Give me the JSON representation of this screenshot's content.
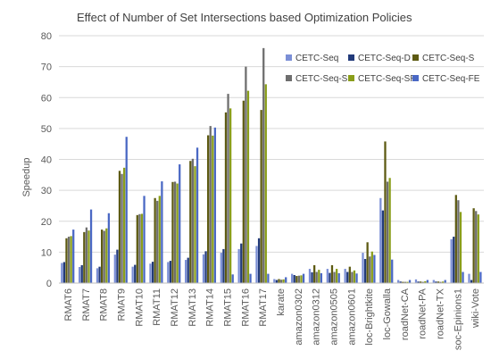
{
  "chart_data": {
    "type": "bar",
    "title": "Effect of Number of Set Intersections based Optimization Policies",
    "xlabel": "",
    "ylabel": "Speedup",
    "ylim": [
      0,
      80
    ],
    "yticks": [
      0,
      10,
      20,
      30,
      40,
      50,
      60,
      70,
      80
    ],
    "grid": true,
    "legend_position": "top-right",
    "categories": [
      "RMAT6",
      "RMAT7",
      "RMAT8",
      "RMAT9",
      "RMAT10",
      "RMAT11",
      "RMAT12",
      "RMAT13",
      "RMAT14",
      "RMAT15",
      "RMAT16",
      "RMAT17",
      "karate",
      "amazon0302",
      "amazon0312",
      "amazon0505",
      "amazon0601",
      "loc-Brightkite",
      "loc-Gowalla",
      "roadNet-CA",
      "roadNet-PA",
      "roadNet-TX",
      "soc-Epinions1",
      "wiki-Vote"
    ],
    "series": [
      {
        "name": "CETC-Seq",
        "color": "#7b8fd6",
        "values": [
          6.5,
          5.2,
          4.8,
          9.2,
          5.3,
          6.3,
          6.8,
          7.5,
          9.3,
          9.8,
          11.0,
          12.0,
          1.3,
          3.0,
          4.6,
          4.6,
          4.6,
          9.8,
          27.5,
          1.0,
          1.2,
          1.0,
          14.2,
          3.0
        ]
      },
      {
        "name": "CETC-Seq-D",
        "color": "#223a7a",
        "values": [
          6.8,
          5.8,
          5.3,
          10.8,
          5.9,
          6.9,
          7.2,
          8.2,
          10.3,
          11.0,
          12.8,
          14.5,
          1.0,
          2.6,
          3.5,
          3.3,
          3.6,
          7.8,
          23.5,
          0.5,
          0.5,
          0.5,
          15.0,
          1.0
        ]
      },
      {
        "name": "CETC-Seq-S",
        "color": "#5d5a12",
        "values": [
          14.5,
          16.5,
          17.3,
          36.3,
          22.0,
          27.5,
          32.7,
          39.5,
          47.8,
          55.2,
          59.0,
          56.0,
          1.3,
          2.3,
          5.8,
          5.8,
          5.3,
          13.2,
          45.8,
          0.4,
          0.5,
          0.5,
          28.5,
          24.2
        ]
      },
      {
        "name": "CETC-Seq-SD",
        "color": "#6e6e6e",
        "values": [
          15.0,
          18.0,
          16.9,
          35.3,
          22.3,
          26.6,
          32.8,
          40.2,
          50.8,
          61.2,
          70.0,
          76.0,
          1.1,
          2.4,
          3.6,
          3.6,
          3.6,
          8.6,
          32.8,
          0.4,
          0.4,
          0.4,
          26.8,
          23.3
        ]
      },
      {
        "name": "CETC-Seq-SR",
        "color": "#8a9e1a",
        "values": [
          15.2,
          17.0,
          17.7,
          37.3,
          22.4,
          28.2,
          32.2,
          37.8,
          47.7,
          56.5,
          62.2,
          64.3,
          1.2,
          2.5,
          4.3,
          4.6,
          4.1,
          10.2,
          34.0,
          0.4,
          0.6,
          0.5,
          23.0,
          22.2
        ]
      },
      {
        "name": "CETC-Seq-FE",
        "color": "#4a68c4",
        "values": [
          17.3,
          23.8,
          22.6,
          47.3,
          28.2,
          32.9,
          38.4,
          43.8,
          50.3,
          2.8,
          3.0,
          3.0,
          1.9,
          3.0,
          3.2,
          3.2,
          3.1,
          9.1,
          7.6,
          1.0,
          1.0,
          1.0,
          3.6,
          3.6
        ]
      }
    ]
  }
}
